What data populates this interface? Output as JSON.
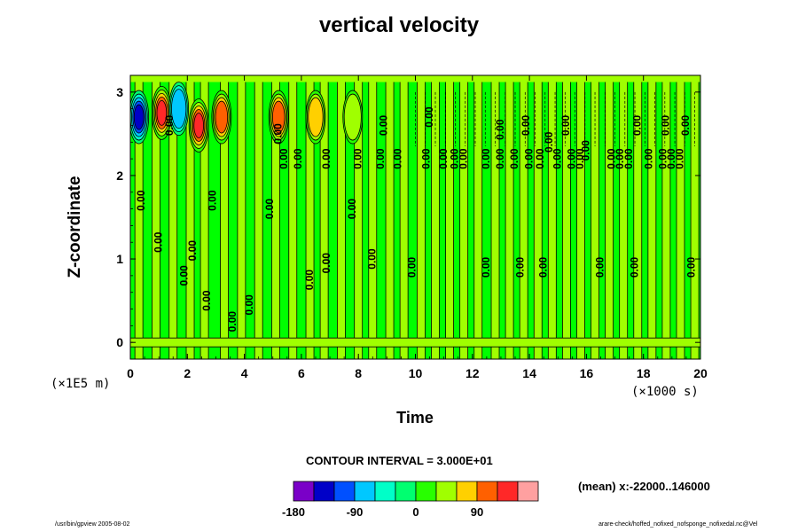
{
  "chart_data": {
    "type": "heatmap",
    "title": "vertical velocity",
    "xlabel": "Time",
    "ylabel": "Z-coordinate",
    "x_units": "(×1000 s)",
    "y_units": "(×1E5 m)",
    "xlim": [
      0,
      20
    ],
    "ylim": [
      -0.2,
      3.2
    ],
    "xticks": [
      0,
      2,
      4,
      6,
      8,
      10,
      12,
      14,
      16,
      18,
      20
    ],
    "yticks": [
      0,
      1,
      2,
      3
    ],
    "contour_interval_text": "CONTOUR INTERVAL = 3.000E+01",
    "contour_interval": 30,
    "contour_label": "0.00",
    "mean_text": "(mean) x:-22000..146000",
    "colorbar": {
      "levels": [
        -180,
        -150,
        -120,
        -90,
        -60,
        -30,
        0,
        30,
        60,
        90,
        120,
        150
      ],
      "tick_labels": [
        "-180",
        "-90",
        "0",
        "90"
      ],
      "tick_values": [
        -180,
        -90,
        0,
        90
      ],
      "colors": [
        "#7a00c8",
        "#0000c8",
        "#0050ff",
        "#00c8ff",
        "#00ffc8",
        "#00ff70",
        "#28ff00",
        "#a0ff00",
        "#ffd000",
        "#ff6000",
        "#ff2828",
        "#ffa0a0"
      ]
    },
    "background_color": "#00ff00",
    "features": {
      "surface_band_z": 0.0,
      "near_vertical_stripe_times": [
        0.3,
        0.9,
        1.5,
        2.1,
        2.6,
        3.3,
        3.9,
        4.5,
        5.1,
        5.7,
        6.3,
        6.8,
        7.4,
        8.0,
        8.5,
        9.1,
        9.6,
        10.2,
        10.7,
        11.2,
        11.7,
        12.2,
        12.8,
        13.3,
        13.8,
        14.3,
        14.8,
        15.3,
        15.8,
        16.3,
        16.8,
        17.3,
        17.8,
        18.3,
        18.8,
        19.3,
        19.8
      ],
      "strong_cells": [
        {
          "t": 0.3,
          "z": 2.7,
          "value": -150
        },
        {
          "t": 1.1,
          "z": 2.75,
          "value": 150
        },
        {
          "t": 1.7,
          "z": 2.8,
          "value": -90
        },
        {
          "t": 2.4,
          "z": 2.6,
          "value": 150
        },
        {
          "t": 3.2,
          "z": 2.7,
          "value": 120
        },
        {
          "t": 5.2,
          "z": 2.7,
          "value": 120
        },
        {
          "t": 6.5,
          "z": 2.7,
          "value": 90
        },
        {
          "t": 7.8,
          "z": 2.7,
          "value": 60
        }
      ],
      "contour_label_positions": [
        {
          "t": 0.5,
          "z": 1.7
        },
        {
          "t": 1.1,
          "z": 1.2
        },
        {
          "t": 1.5,
          "z": 2.6
        },
        {
          "t": 2.0,
          "z": 0.8
        },
        {
          "t": 2.3,
          "z": 1.1
        },
        {
          "t": 2.8,
          "z": 0.5
        },
        {
          "t": 3.0,
          "z": 1.7
        },
        {
          "t": 3.7,
          "z": 0.25
        },
        {
          "t": 4.3,
          "z": 0.45
        },
        {
          "t": 5.0,
          "z": 1.6
        },
        {
          "t": 5.5,
          "z": 2.2
        },
        {
          "t": 5.3,
          "z": 2.5
        },
        {
          "t": 6.0,
          "z": 2.2
        },
        {
          "t": 6.4,
          "z": 0.75
        },
        {
          "t": 7.0,
          "z": 0.95
        },
        {
          "t": 7.0,
          "z": 2.2
        },
        {
          "t": 7.9,
          "z": 1.6
        },
        {
          "t": 8.1,
          "z": 2.2
        },
        {
          "t": 8.6,
          "z": 1.0
        },
        {
          "t": 8.9,
          "z": 2.2
        },
        {
          "t": 9.0,
          "z": 2.6
        },
        {
          "t": 9.5,
          "z": 2.2
        },
        {
          "t": 10.0,
          "z": 0.9
        },
        {
          "t": 10.5,
          "z": 2.2
        },
        {
          "t": 10.6,
          "z": 2.7
        },
        {
          "t": 11.1,
          "z": 2.2
        },
        {
          "t": 11.5,
          "z": 2.2
        },
        {
          "t": 11.8,
          "z": 2.2
        },
        {
          "t": 12.6,
          "z": 0.9
        },
        {
          "t": 12.6,
          "z": 2.2
        },
        {
          "t": 13.1,
          "z": 2.2
        },
        {
          "t": 13.1,
          "z": 2.55
        },
        {
          "t": 13.6,
          "z": 2.2
        },
        {
          "t": 13.8,
          "z": 0.9
        },
        {
          "t": 14.0,
          "z": 2.6
        },
        {
          "t": 14.1,
          "z": 2.2
        },
        {
          "t": 14.5,
          "z": 2.2
        },
        {
          "t": 14.6,
          "z": 0.9
        },
        {
          "t": 14.8,
          "z": 2.4
        },
        {
          "t": 15.1,
          "z": 2.2
        },
        {
          "t": 15.4,
          "z": 2.6
        },
        {
          "t": 15.6,
          "z": 2.2
        },
        {
          "t": 15.9,
          "z": 2.2
        },
        {
          "t": 16.1,
          "z": 2.3
        },
        {
          "t": 16.6,
          "z": 0.9
        },
        {
          "t": 17.0,
          "z": 2.2
        },
        {
          "t": 17.3,
          "z": 2.2
        },
        {
          "t": 17.6,
          "z": 2.2
        },
        {
          "t": 17.8,
          "z": 0.9
        },
        {
          "t": 17.9,
          "z": 2.6
        },
        {
          "t": 18.3,
          "z": 2.2
        },
        {
          "t": 18.8,
          "z": 2.2
        },
        {
          "t": 18.9,
          "z": 2.6
        },
        {
          "t": 19.1,
          "z": 2.2
        },
        {
          "t": 19.4,
          "z": 2.2
        },
        {
          "t": 19.6,
          "z": 2.6
        },
        {
          "t": 19.8,
          "z": 0.9
        }
      ]
    }
  },
  "footer": {
    "left": "/usr/bin/gpview 2005-08-02",
    "right": "arare-check/hoffed_nofixed_nofsponge_nofixedal.nc@Vel"
  }
}
